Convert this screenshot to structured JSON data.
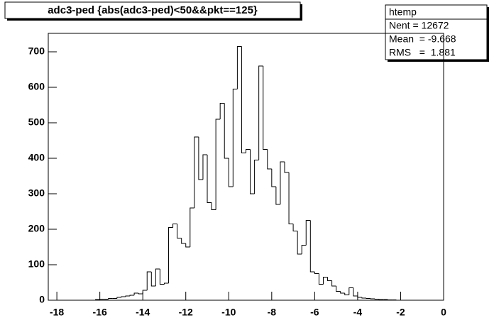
{
  "chart_data": {
    "type": "histogram",
    "title": "adc3-ped {abs(adc3-ped)<50&&pkt==125}",
    "stats": {
      "name": "htemp",
      "entries": "Nent = 12672",
      "mean": "Mean  = -9.668",
      "rms": "RMS   =  1.881"
    },
    "color": "#000000",
    "bins": [
      -18.4,
      -18.2,
      -18,
      -17.8,
      -17.6,
      -17.4,
      -17.2,
      -17,
      -16.8,
      -16.6,
      -16.4,
      -16.2,
      -16,
      -15.8,
      -15.6,
      -15.4,
      -15.2,
      -15,
      -14.8,
      -14.6,
      -14.4,
      -14.2,
      -14,
      -13.8,
      -13.6,
      -13.4,
      -13.2,
      -13,
      -12.8,
      -12.6,
      -12.4,
      -12.2,
      -12,
      -11.8,
      -11.6,
      -11.4,
      -11.2,
      -11,
      -10.8,
      -10.6,
      -10.4,
      -10.2,
      -10,
      -9.8,
      -9.6,
      -9.4,
      -9.2,
      -9,
      -8.8,
      -8.6,
      -8.4,
      -8.2,
      -8,
      -7.8,
      -7.6,
      -7.4,
      -7.2,
      -7,
      -6.8,
      -6.6,
      -6.4,
      -6.2,
      -6,
      -5.8,
      -5.6,
      -5.4,
      -5.2,
      -5,
      -4.8,
      -4.6,
      -4.4,
      -4.2,
      -4,
      -3.8,
      -3.6,
      -3.4,
      -3.2,
      -3,
      -2.8,
      -2.6,
      -2.4,
      -2.2,
      -2,
      -1.8,
      -1.6,
      -1.4,
      -1.2,
      -1,
      -0.8,
      -0.6,
      -0.4,
      -0.2,
      0
    ],
    "counts": [
      0,
      0,
      0,
      0,
      0,
      0,
      0,
      0,
      0,
      0,
      0,
      2,
      3,
      3,
      5,
      5,
      8,
      10,
      12,
      14,
      20,
      18,
      28,
      80,
      40,
      88,
      45,
      48,
      205,
      215,
      175,
      160,
      150,
      260,
      460,
      340,
      410,
      275,
      255,
      510,
      555,
      400,
      320,
      595,
      715,
      415,
      425,
      300,
      395,
      660,
      425,
      370,
      320,
      270,
      390,
      360,
      215,
      195,
      130,
      155,
      225,
      80,
      75,
      45,
      65,
      55,
      40,
      25,
      20,
      15,
      35,
      12,
      8,
      6,
      5,
      4,
      3,
      2,
      2,
      1,
      1,
      0,
      0,
      0,
      0,
      0,
      0,
      0,
      0,
      0,
      0,
      0
    ],
    "xlim": [
      -18.4,
      0
    ],
    "ylim": [
      0,
      752
    ],
    "xticks": [
      -18,
      -16,
      -14,
      -12,
      -10,
      -8,
      -6,
      -4,
      -2,
      0
    ],
    "yticks": [
      0,
      100,
      200,
      300,
      400,
      500,
      600,
      700
    ]
  }
}
